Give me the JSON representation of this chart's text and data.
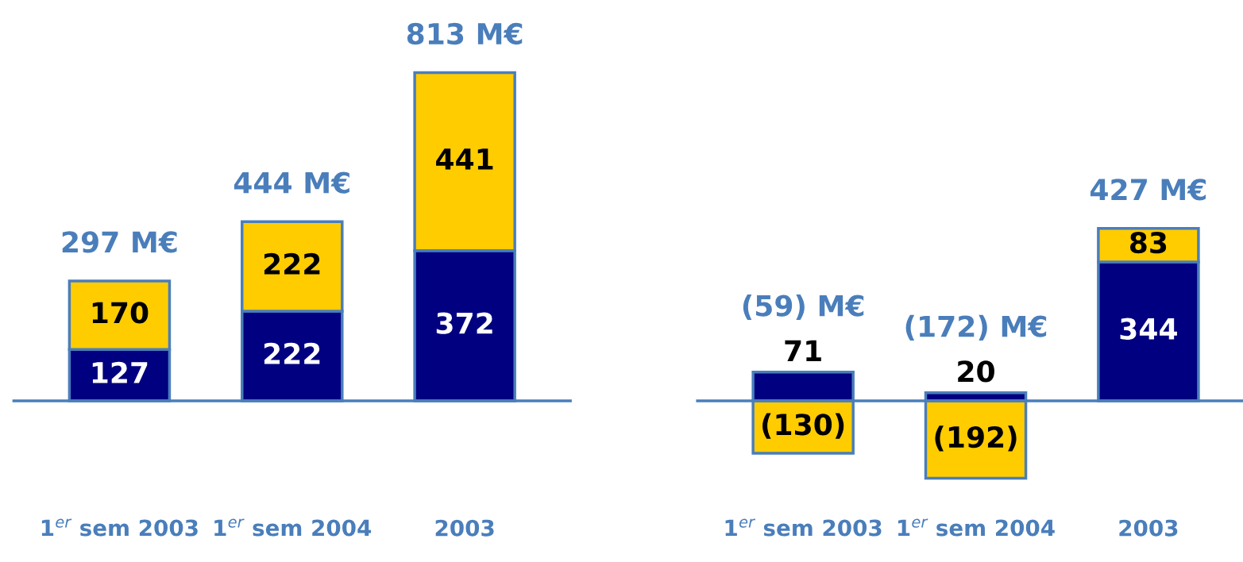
{
  "chart_data": [
    {
      "type": "bar",
      "stacked": true,
      "categories": [
        "1$^{er}$ sem 2003",
        "1$^{er}$ sem 2004",
        "2003"
      ],
      "grid": false,
      "legend": false,
      "series": [
        {
          "color": "#000080",
          "values": [
            127,
            222,
            372
          ],
          "value_labels": [
            "127",
            "222",
            "372"
          ]
        },
        {
          "color": "#ffcc00",
          "values": [
            170,
            222,
            441
          ],
          "value_labels": [
            "170",
            "222",
            "441"
          ]
        }
      ],
      "totals": [
        "297 M€",
        "444 M€",
        "813 M€"
      ],
      "ref_lines": [
        {
          "axis": "y",
          "value": 0,
          "color": "#4a7ebb"
        }
      ]
    },
    {
      "type": "bar",
      "stacked": true,
      "categories": [
        "1$^{er}$ sem 2003",
        "1$^{er}$ sem 2004",
        "2003"
      ],
      "grid": false,
      "legend": false,
      "series": [
        {
          "color": "#000080",
          "values": [
            71,
            20,
            344
          ],
          "value_labels": [
            "71",
            "20",
            "344"
          ]
        },
        {
          "color": "#ffcc00",
          "values": [
            -130,
            -192,
            83
          ],
          "value_labels": [
            "(130)",
            "(192)",
            "83"
          ]
        }
      ],
      "totals": [
        "(59) M€",
        "(172) M€",
        "427 M€"
      ],
      "ref_lines": [
        {
          "axis": "y",
          "value": 0,
          "color": "#4a7ebb"
        }
      ]
    }
  ]
}
